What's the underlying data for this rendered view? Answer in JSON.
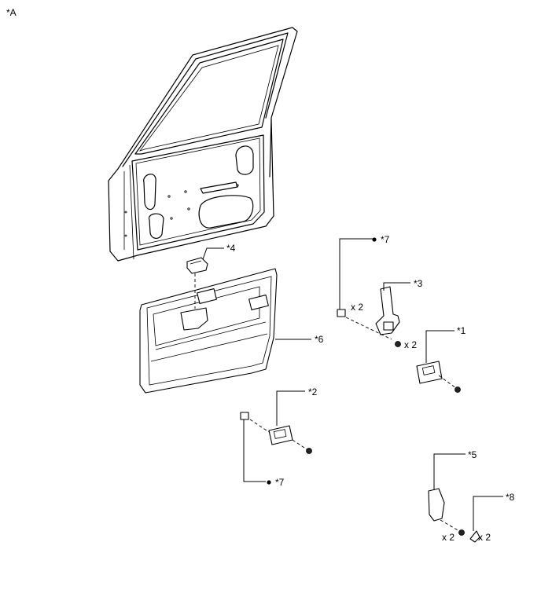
{
  "diagram": {
    "view_label": "*A",
    "callouts": {
      "c1": "*1",
      "c2": "*2",
      "c3": "*3",
      "c4": "*4",
      "c5": "*5",
      "c6": "*6",
      "c7_top": "*7",
      "c7_bottom": "*7",
      "c8": "*8"
    },
    "quantities": {
      "q_clip_top": "x 2",
      "q_screw_3": "x 2",
      "q_screw_5": "x 2",
      "q_part_8": "x 2"
    }
  }
}
